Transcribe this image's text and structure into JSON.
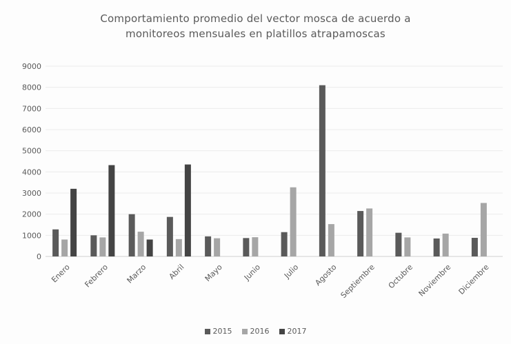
{
  "chart_data": {
    "type": "bar",
    "title": "Comportamiento  promedio  del vector mosca  de acuerdo a monitoreos  mensuales en platillos atrapamoscas",
    "title_lines": [
      "Comportamiento  promedio  del vector mosca  de acuerdo a",
      "monitoreos  mensuales en platillos atrapamoscas"
    ],
    "xlabel": "",
    "ylabel": "",
    "ylim": [
      0,
      9000
    ],
    "yticks": [
      "0",
      "1000",
      "2000",
      "3000",
      "4000",
      "5000",
      "6000",
      "7000",
      "8000",
      "9000"
    ],
    "grid": true,
    "legend_position": "bottom",
    "categories": [
      "Enero",
      "Febrero",
      "Marzo",
      "Abril",
      "Mayo",
      "Junio",
      "Julio",
      "Agosto",
      "Septiembre",
      "Octubre",
      "Noviembre",
      "Diciembre"
    ],
    "series": [
      {
        "name": "2015",
        "color": "#5a5a5a",
        "values": [
          1280,
          1000,
          2000,
          1870,
          950,
          870,
          1150,
          8100,
          2150,
          1120,
          850,
          880
        ]
      },
      {
        "name": "2016",
        "color": "#a6a6a6",
        "values": [
          800,
          900,
          1170,
          820,
          860,
          910,
          3270,
          1530,
          2270,
          900,
          1080,
          2530
        ]
      },
      {
        "name": "2017",
        "color": "#444444",
        "values": [
          3200,
          4320,
          800,
          4350,
          null,
          null,
          null,
          null,
          null,
          null,
          null,
          null
        ]
      }
    ]
  }
}
